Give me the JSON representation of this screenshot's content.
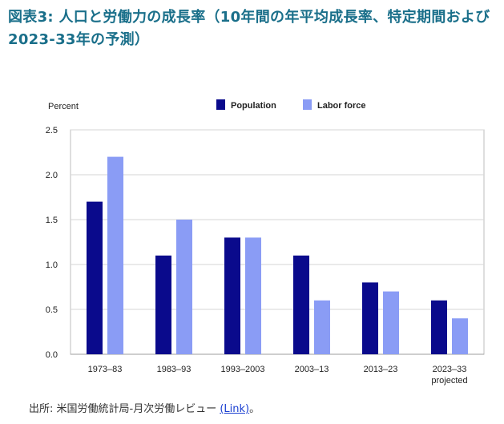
{
  "figure": {
    "title": "図表3: 人口と労働力の成長率（10年間の年平均成長率、特定期間および2023-33年の予測）"
  },
  "source": {
    "prefix": "出所: 米国労働統計局-月次労働レビュー ",
    "link_text": "(Link)",
    "suffix": "。"
  },
  "chart_data": {
    "type": "bar",
    "ylabel": "Percent",
    "xlabel": "",
    "ylim": [
      0,
      2.5
    ],
    "yticks": [
      "0.0",
      "0.5",
      "1.0",
      "1.5",
      "2.0",
      "2.5"
    ],
    "categories": [
      "1973–83",
      "1983–93",
      "1993–2003",
      "2003–13",
      "2013–23",
      "2023–33"
    ],
    "category_sublabels": [
      "",
      "",
      "",
      "",
      "",
      "projected"
    ],
    "series": [
      {
        "name": "Population",
        "color": "#0a0a8c",
        "values": [
          1.7,
          1.1,
          1.3,
          1.1,
          0.8,
          0.6
        ]
      },
      {
        "name": "Labor force",
        "color": "#8a9cf5",
        "values": [
          2.2,
          1.5,
          1.3,
          0.6,
          0.7,
          0.4
        ]
      }
    ],
    "grid": true,
    "legend_position": "top"
  }
}
